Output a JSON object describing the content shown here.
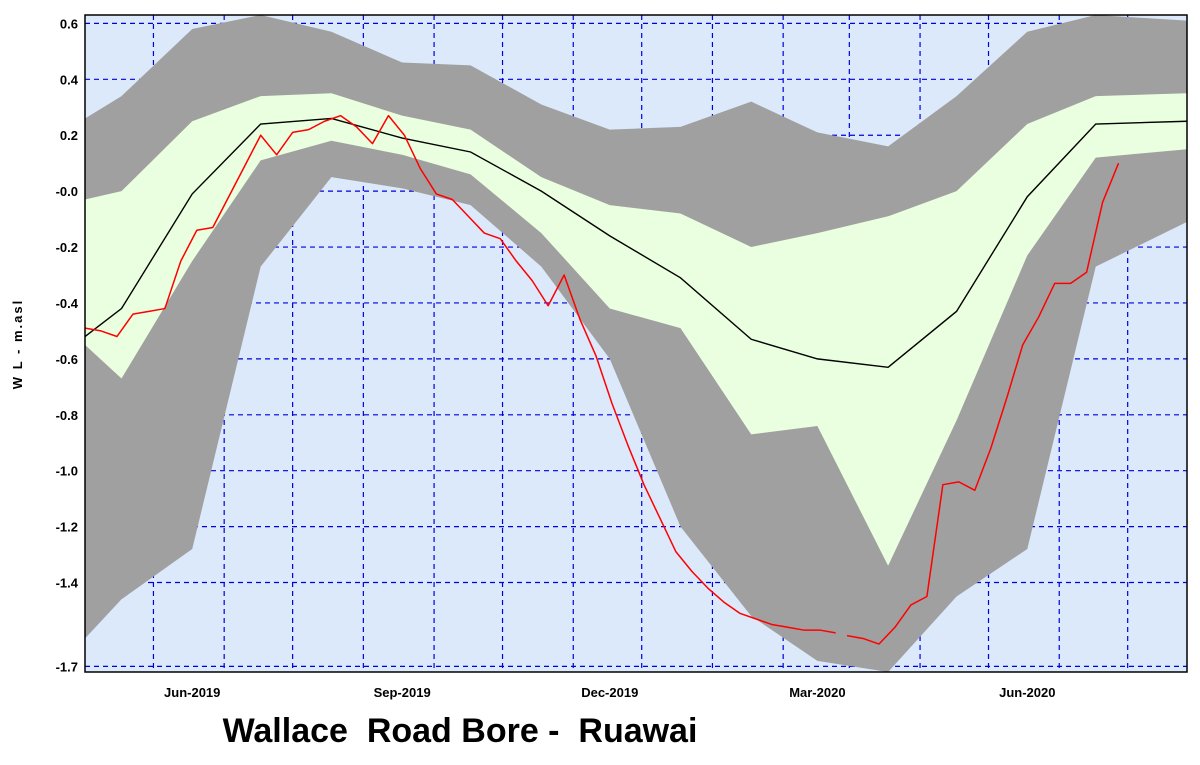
{
  "chart_data": {
    "type": "area",
    "title": "Wallace  Road Bore -  Ruawai",
    "xlabel": "",
    "ylabel": "W L - m.asl",
    "x_range": [
      "2019-04-15",
      "2020-08-10"
    ],
    "ylim": [
      -1.72,
      0.63
    ],
    "y_ticks": [
      {
        "v": 0.6,
        "label": "0.6"
      },
      {
        "v": 0.4,
        "label": "0.4"
      },
      {
        "v": 0.2,
        "label": "0.2"
      },
      {
        "v": 0.0,
        "label": "-0.0"
      },
      {
        "v": -0.2,
        "label": "-0.2"
      },
      {
        "v": -0.4,
        "label": "-0.4"
      },
      {
        "v": -0.6,
        "label": "-0.6"
      },
      {
        "v": -0.8,
        "label": "-0.8"
      },
      {
        "v": -1.0,
        "label": "-1.0"
      },
      {
        "v": -1.2,
        "label": "-1.2"
      },
      {
        "v": -1.4,
        "label": "-1.4"
      },
      {
        "v": -1.7,
        "label": "-1.7"
      }
    ],
    "x_ticks": [
      {
        "date": "2019-06-01",
        "label": "Jun-2019"
      },
      {
        "date": "2019-09-01",
        "label": "Sep-2019"
      },
      {
        "date": "2019-12-01",
        "label": "Dec-2019"
      },
      {
        "date": "2020-03-01",
        "label": "Mar-2020"
      },
      {
        "date": "2020-06-01",
        "label": "Jun-2020"
      }
    ],
    "x_grid": [
      "2019-05-15",
      "2019-06-15",
      "2019-07-15",
      "2019-08-15",
      "2019-09-15",
      "2019-10-15",
      "2019-11-15",
      "2019-12-15",
      "2020-01-15",
      "2020-02-15",
      "2020-03-15",
      "2020-04-15",
      "2020-05-15",
      "2020-06-15",
      "2020-07-15"
    ],
    "grid": true,
    "colors": {
      "plot_background": "#dce9fb",
      "grid": "#0000dd",
      "outer_band": "#a0a0a0",
      "inner_band": "#eaffdf",
      "median_line": "#000000",
      "observed_line": "#ff0000"
    },
    "series": [
      {
        "x": [
          "2019-04-15",
          "2019-05-01",
          "2019-06-01",
          "2019-07-01",
          "2019-08-01",
          "2019-09-01",
          "2019-10-01",
          "2019-11-01",
          "2019-12-01",
          "2020-01-01",
          "2020-02-01",
          "2020-03-01",
          "2020-04-01",
          "2020-05-01",
          "2020-06-01",
          "2020-07-01",
          "2020-08-10"
        ],
        "outer_upper": [
          0.26,
          0.34,
          0.58,
          0.63,
          0.57,
          0.46,
          0.45,
          0.31,
          0.22,
          0.23,
          0.32,
          0.21,
          0.16,
          0.34,
          0.57,
          0.63,
          0.61
        ],
        "inner_upper": [
          -0.03,
          0.0,
          0.25,
          0.34,
          0.35,
          0.27,
          0.22,
          0.05,
          -0.05,
          -0.08,
          -0.2,
          -0.15,
          -0.09,
          0.0,
          0.24,
          0.34,
          0.35
        ],
        "median": [
          -0.52,
          -0.42,
          -0.01,
          0.24,
          0.26,
          0.19,
          0.14,
          0.0,
          -0.16,
          -0.31,
          -0.53,
          -0.6,
          -0.63,
          -0.43,
          -0.02,
          0.24,
          0.25
        ],
        "inner_lower": [
          -0.55,
          -0.67,
          -0.25,
          0.11,
          0.18,
          0.13,
          0.06,
          -0.15,
          -0.42,
          -0.49,
          -0.87,
          -0.84,
          -1.34,
          -0.82,
          -0.23,
          0.12,
          0.15
        ],
        "outer_lower": [
          -1.6,
          -1.46,
          -1.28,
          -0.27,
          0.05,
          0.01,
          -0.05,
          -0.27,
          -0.6,
          -1.2,
          -1.52,
          -1.68,
          -1.72,
          -1.45,
          -1.28,
          -0.27,
          -0.11
        ]
      },
      {
        "segments": [
          {
            "x": [
              "2019-04-15",
              "2019-04-22",
              "2019-04-29",
              "2019-05-06",
              "2019-05-13",
              "2019-05-20",
              "2019-05-27",
              "2019-06-03",
              "2019-06-10",
              "2019-06-17",
              "2019-06-24",
              "2019-07-01",
              "2019-07-08",
              "2019-07-15",
              "2019-07-22",
              "2019-07-29",
              "2019-08-05",
              "2019-08-12",
              "2019-08-19",
              "2019-08-26",
              "2019-09-02",
              "2019-09-09",
              "2019-09-16",
              "2019-09-23",
              "2019-09-30",
              "2019-10-07",
              "2019-10-14",
              "2019-10-21",
              "2019-10-28",
              "2019-11-04",
              "2019-11-11",
              "2019-11-18",
              "2019-11-25",
              "2019-12-02",
              "2019-12-09",
              "2019-12-16",
              "2019-12-23",
              "2019-12-30",
              "2020-01-06",
              "2020-01-13",
              "2020-01-20",
              "2020-01-27",
              "2020-02-03",
              "2020-02-10",
              "2020-02-17",
              "2020-02-24",
              "2020-03-02",
              "2020-03-09"
            ],
            "y": [
              -0.49,
              -0.5,
              -0.52,
              -0.44,
              -0.43,
              -0.42,
              -0.25,
              -0.14,
              -0.13,
              -0.02,
              0.09,
              0.2,
              0.13,
              0.21,
              0.22,
              0.25,
              0.27,
              0.23,
              0.17,
              0.27,
              0.2,
              0.08,
              -0.01,
              -0.03,
              -0.09,
              -0.15,
              -0.17,
              -0.25,
              -0.32,
              -0.41,
              -0.3,
              -0.46,
              -0.59,
              -0.76,
              -0.91,
              -1.05,
              -1.17,
              -1.29,
              -1.36,
              -1.42,
              -1.47,
              -1.51,
              -1.53,
              -1.55,
              -1.56,
              -1.57,
              -1.57,
              -1.58
            ]
          },
          {
            "x": [
              "2020-03-14",
              "2020-03-21",
              "2020-03-28",
              "2020-04-04",
              "2020-04-11",
              "2020-04-18",
              "2020-04-25",
              "2020-05-02",
              "2020-05-09",
              "2020-05-16",
              "2020-05-23",
              "2020-05-30",
              "2020-06-06",
              "2020-06-13",
              "2020-06-20",
              "2020-06-27",
              "2020-07-04",
              "2020-07-11"
            ],
            "y": [
              -1.59,
              -1.6,
              -1.62,
              -1.56,
              -1.48,
              -1.45,
              -1.05,
              -1.04,
              -1.07,
              -0.92,
              -0.74,
              -0.55,
              -0.45,
              -0.33,
              -0.33,
              -0.29,
              -0.04,
              0.1
            ]
          }
        ]
      }
    ]
  }
}
